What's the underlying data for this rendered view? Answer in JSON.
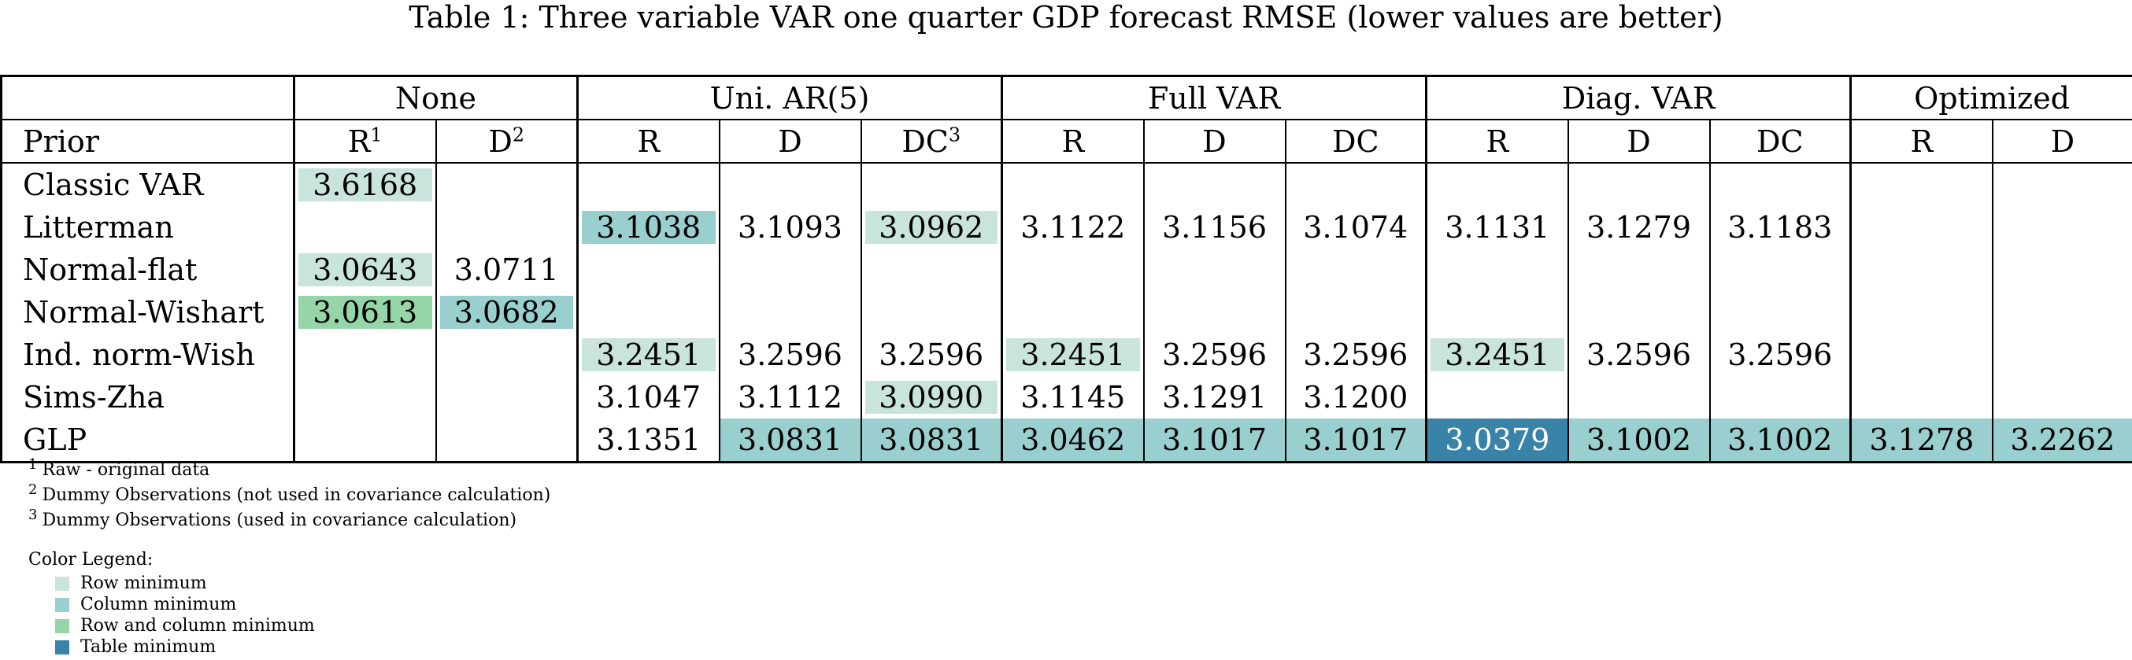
{
  "caption": "Table 1: Three variable VAR one quarter GDP forecast RMSE (lower values are better)",
  "groups": [
    "None",
    "Uni. AR(5)",
    "Full VAR",
    "Diag. VAR",
    "Optimized"
  ],
  "header": {
    "prior_label": "Prior",
    "columns": [
      {
        "label": "R",
        "sup": "1"
      },
      {
        "label": "D",
        "sup": "2"
      },
      {
        "label": "R",
        "sup": ""
      },
      {
        "label": "D",
        "sup": ""
      },
      {
        "label": "DC",
        "sup": "3"
      },
      {
        "label": "R",
        "sup": ""
      },
      {
        "label": "D",
        "sup": ""
      },
      {
        "label": "DC",
        "sup": ""
      },
      {
        "label": "R",
        "sup": ""
      },
      {
        "label": "D",
        "sup": ""
      },
      {
        "label": "DC",
        "sup": ""
      },
      {
        "label": "R",
        "sup": ""
      },
      {
        "label": "D",
        "sup": ""
      }
    ]
  },
  "colors": {
    "row_min": "#c9e3dd",
    "col_min": "#99cfcf",
    "row_and_col_min": "#95d5a7",
    "table_min": "#3a83a8"
  },
  "rows": [
    {
      "prior": "Classic VAR",
      "cells": [
        {
          "v": "3.6168",
          "h": "row_min"
        },
        {
          "v": ""
        },
        {
          "v": ""
        },
        {
          "v": ""
        },
        {
          "v": ""
        },
        {
          "v": ""
        },
        {
          "v": ""
        },
        {
          "v": ""
        },
        {
          "v": ""
        },
        {
          "v": ""
        },
        {
          "v": ""
        },
        {
          "v": ""
        },
        {
          "v": ""
        }
      ]
    },
    {
      "prior": "Litterman",
      "cells": [
        {
          "v": ""
        },
        {
          "v": ""
        },
        {
          "v": "3.1038",
          "h": "col_min"
        },
        {
          "v": "3.1093"
        },
        {
          "v": "3.0962",
          "h": "row_min"
        },
        {
          "v": "3.1122"
        },
        {
          "v": "3.1156"
        },
        {
          "v": "3.1074"
        },
        {
          "v": "3.1131"
        },
        {
          "v": "3.1279"
        },
        {
          "v": "3.1183"
        },
        {
          "v": ""
        },
        {
          "v": ""
        }
      ]
    },
    {
      "prior": "Normal-flat",
      "cells": [
        {
          "v": "3.0643",
          "h": "row_min"
        },
        {
          "v": "3.0711"
        },
        {
          "v": ""
        },
        {
          "v": ""
        },
        {
          "v": ""
        },
        {
          "v": ""
        },
        {
          "v": ""
        },
        {
          "v": ""
        },
        {
          "v": ""
        },
        {
          "v": ""
        },
        {
          "v": ""
        },
        {
          "v": ""
        },
        {
          "v": ""
        }
      ]
    },
    {
      "prior": "Normal-Wishart",
      "cells": [
        {
          "v": "3.0613",
          "h": "row_and_col_min"
        },
        {
          "v": "3.0682",
          "h": "col_min"
        },
        {
          "v": ""
        },
        {
          "v": ""
        },
        {
          "v": ""
        },
        {
          "v": ""
        },
        {
          "v": ""
        },
        {
          "v": ""
        },
        {
          "v": ""
        },
        {
          "v": ""
        },
        {
          "v": ""
        },
        {
          "v": ""
        },
        {
          "v": ""
        }
      ]
    },
    {
      "prior": "Ind. norm-Wish",
      "cells": [
        {
          "v": ""
        },
        {
          "v": ""
        },
        {
          "v": "3.2451",
          "h": "row_min"
        },
        {
          "v": "3.2596"
        },
        {
          "v": "3.2596"
        },
        {
          "v": "3.2451",
          "h": "row_min"
        },
        {
          "v": "3.2596"
        },
        {
          "v": "3.2596"
        },
        {
          "v": "3.2451",
          "h": "row_min"
        },
        {
          "v": "3.2596"
        },
        {
          "v": "3.2596"
        },
        {
          "v": ""
        },
        {
          "v": ""
        }
      ]
    },
    {
      "prior": "Sims-Zha",
      "cells": [
        {
          "v": ""
        },
        {
          "v": ""
        },
        {
          "v": "3.1047"
        },
        {
          "v": "3.1112"
        },
        {
          "v": "3.0990",
          "h": "row_min"
        },
        {
          "v": "3.1145"
        },
        {
          "v": "3.1291"
        },
        {
          "v": "3.1200"
        },
        {
          "v": ""
        },
        {
          "v": ""
        },
        {
          "v": ""
        },
        {
          "v": ""
        },
        {
          "v": ""
        }
      ]
    },
    {
      "prior": "GLP",
      "cells": [
        {
          "v": ""
        },
        {
          "v": ""
        },
        {
          "v": "3.1351"
        },
        {
          "v": "3.0831",
          "h": "col_min"
        },
        {
          "v": "3.0831",
          "h": "col_min"
        },
        {
          "v": "3.0462",
          "h": "col_min"
        },
        {
          "v": "3.1017",
          "h": "col_min"
        },
        {
          "v": "3.1017",
          "h": "col_min"
        },
        {
          "v": "3.0379",
          "h": "table_min"
        },
        {
          "v": "3.1002",
          "h": "col_min"
        },
        {
          "v": "3.1002",
          "h": "col_min"
        },
        {
          "v": "3.1278",
          "h": "col_min"
        },
        {
          "v": "3.2262",
          "h": "col_min"
        }
      ]
    }
  ],
  "footnotes": [
    {
      "mark": "1",
      "text": "Raw - original data"
    },
    {
      "mark": "2",
      "text": "Dummy Observations (not used in covariance calculation)"
    },
    {
      "mark": "3",
      "text": "Dummy Observations (used in covariance calculation)"
    }
  ],
  "legend": {
    "title": "Color Legend:",
    "items": [
      {
        "label": "Row minimum",
        "color": "#c9e3dd"
      },
      {
        "label": "Column minimum",
        "color": "#99cfcf"
      },
      {
        "label": "Row and column minimum",
        "color": "#95d5a7"
      },
      {
        "label": "Table minimum",
        "color": "#3a83a8"
      }
    ]
  }
}
